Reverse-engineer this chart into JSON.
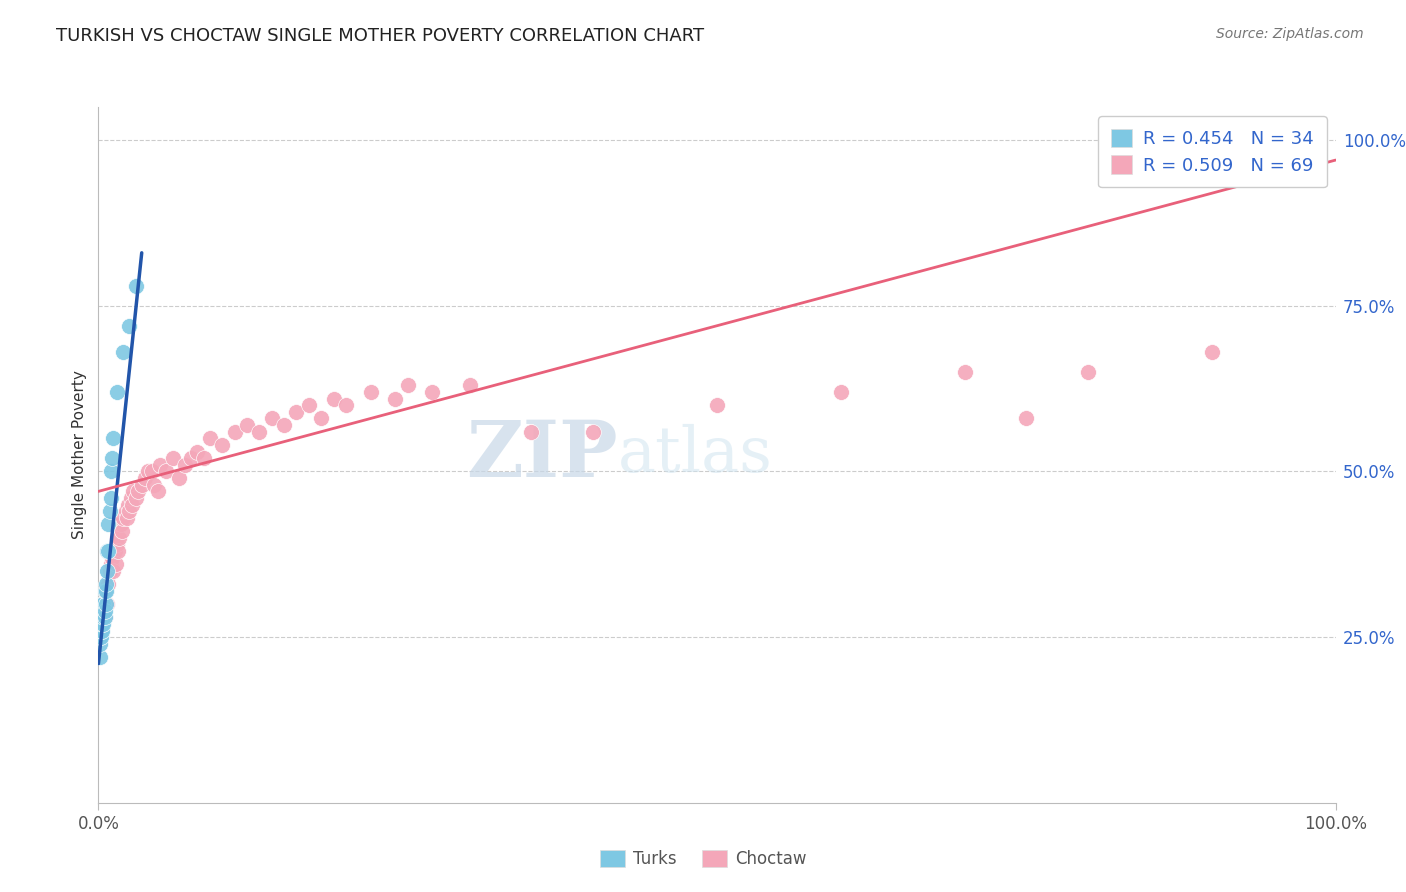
{
  "title": "TURKISH VS CHOCTAW SINGLE MOTHER POVERTY CORRELATION CHART",
  "source": "Source: ZipAtlas.com",
  "ylabel": "Single Mother Poverty",
  "turks_R": 0.454,
  "turks_N": 34,
  "choctaw_R": 0.509,
  "choctaw_N": 69,
  "turks_color": "#7ec8e3",
  "choctaw_color": "#f4a7b9",
  "turks_line_color": "#2255aa",
  "choctaw_line_color": "#e8607a",
  "legend_label_turks": "Turks",
  "legend_label_choctaw": "Choctaw",
  "xlim": [
    0,
    1
  ],
  "ylim": [
    0,
    1.05
  ],
  "xtick_labels": [
    "0.0%",
    "100.0%"
  ],
  "ytick_labels": [
    "25.0%",
    "50.0%",
    "75.0%",
    "100.0%"
  ],
  "ytick_positions": [
    0.25,
    0.5,
    0.75,
    1.0
  ],
  "watermark_zip": "ZIP",
  "watermark_atlas": "atlas",
  "turks_x": [
    0.001,
    0.001,
    0.001,
    0.001,
    0.002,
    0.002,
    0.002,
    0.002,
    0.003,
    0.003,
    0.003,
    0.003,
    0.004,
    0.004,
    0.004,
    0.005,
    0.005,
    0.005,
    0.006,
    0.006,
    0.006,
    0.007,
    0.007,
    0.008,
    0.008,
    0.009,
    0.01,
    0.01,
    0.011,
    0.012,
    0.015,
    0.02,
    0.025,
    0.03
  ],
  "turks_y": [
    0.22,
    0.24,
    0.25,
    0.27,
    0.25,
    0.26,
    0.27,
    0.28,
    0.26,
    0.27,
    0.28,
    0.3,
    0.27,
    0.28,
    0.3,
    0.28,
    0.29,
    0.32,
    0.3,
    0.32,
    0.33,
    0.35,
    0.38,
    0.38,
    0.42,
    0.44,
    0.46,
    0.5,
    0.52,
    0.55,
    0.62,
    0.68,
    0.72,
    0.78
  ],
  "choctaw_x": [
    0.002,
    0.004,
    0.005,
    0.006,
    0.007,
    0.008,
    0.009,
    0.01,
    0.01,
    0.011,
    0.012,
    0.013,
    0.014,
    0.015,
    0.015,
    0.016,
    0.017,
    0.018,
    0.019,
    0.02,
    0.022,
    0.023,
    0.024,
    0.025,
    0.026,
    0.027,
    0.028,
    0.03,
    0.032,
    0.035,
    0.038,
    0.04,
    0.043,
    0.045,
    0.048,
    0.05,
    0.055,
    0.06,
    0.065,
    0.07,
    0.075,
    0.08,
    0.085,
    0.09,
    0.1,
    0.11,
    0.12,
    0.13,
    0.14,
    0.15,
    0.16,
    0.17,
    0.18,
    0.19,
    0.2,
    0.22,
    0.24,
    0.25,
    0.27,
    0.3,
    0.35,
    0.4,
    0.5,
    0.6,
    0.7,
    0.75,
    0.8,
    0.9,
    0.97
  ],
  "choctaw_y": [
    0.27,
    0.3,
    0.28,
    0.32,
    0.3,
    0.33,
    0.35,
    0.36,
    0.38,
    0.37,
    0.35,
    0.38,
    0.36,
    0.39,
    0.4,
    0.38,
    0.4,
    0.42,
    0.41,
    0.43,
    0.44,
    0.43,
    0.45,
    0.44,
    0.46,
    0.45,
    0.47,
    0.46,
    0.47,
    0.48,
    0.49,
    0.5,
    0.5,
    0.48,
    0.47,
    0.51,
    0.5,
    0.52,
    0.49,
    0.51,
    0.52,
    0.53,
    0.52,
    0.55,
    0.54,
    0.56,
    0.57,
    0.56,
    0.58,
    0.57,
    0.59,
    0.6,
    0.58,
    0.61,
    0.6,
    0.62,
    0.61,
    0.63,
    0.62,
    0.63,
    0.56,
    0.56,
    0.6,
    0.62,
    0.65,
    0.58,
    0.65,
    0.68,
    0.98
  ],
  "turks_line_x": [
    0.0,
    0.035
  ],
  "turks_line_y": [
    0.21,
    0.83
  ],
  "choctaw_line_x": [
    0.0,
    1.0
  ],
  "choctaw_line_y": [
    0.47,
    0.97
  ]
}
